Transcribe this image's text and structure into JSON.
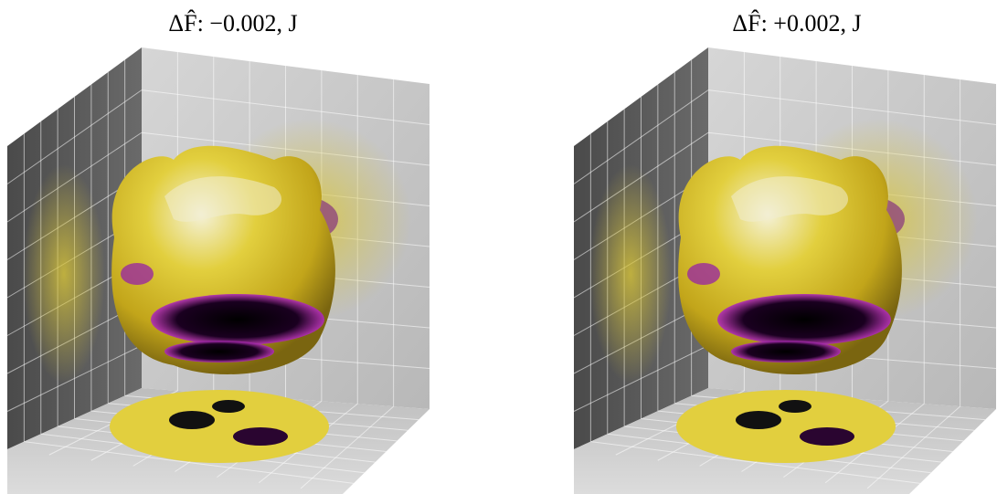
{
  "panels": [
    {
      "title": "ΔF̂: −0.002, J"
    },
    {
      "title": "ΔF̂: +0.002, J"
    }
  ]
}
